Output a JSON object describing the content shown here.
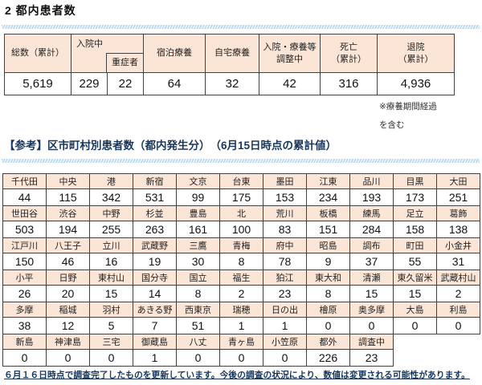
{
  "page_title": "2 都内患者数",
  "summary_table": {
    "headers": {
      "total": "総数（累計）",
      "hospitalized": "入院中",
      "severe": "重症者",
      "hotel_care": "宿泊療養",
      "home_care": "自宅療養",
      "adjusting": "入院・療養等\n調整中",
      "deaths": "死亡\n（累計）",
      "discharged": "退院\n（累計）"
    },
    "values": {
      "total": "5,619",
      "hospitalized": "229",
      "severe": "22",
      "hotel_care": "64",
      "home_care": "32",
      "adjusting": "42",
      "deaths": "316",
      "discharged": "4,936"
    },
    "note": "※療養期間経過\nを含む"
  },
  "section_title": "【参考】区市町村別患者数（都内発生分）　（6月15日時点の累計値）",
  "ward_table": {
    "columns_per_row": 11,
    "groups": [
      {
        "names": [
          "千代田",
          "中央",
          "港",
          "新宿",
          "文京",
          "台東",
          "墨田",
          "江東",
          "品川",
          "目黒",
          "大田"
        ],
        "values": [
          "44",
          "115",
          "342",
          "531",
          "99",
          "175",
          "153",
          "234",
          "193",
          "173",
          "251"
        ]
      },
      {
        "names": [
          "世田谷",
          "渋谷",
          "中野",
          "杉並",
          "豊島",
          "北",
          "荒川",
          "板橋",
          "練馬",
          "足立",
          "葛飾"
        ],
        "values": [
          "503",
          "194",
          "255",
          "263",
          "161",
          "100",
          "83",
          "151",
          "284",
          "158",
          "138"
        ]
      },
      {
        "names": [
          "江戸川",
          "八王子",
          "立川",
          "武蔵野",
          "三鷹",
          "青梅",
          "府中",
          "昭島",
          "調布",
          "町田",
          "小金井"
        ],
        "values": [
          "150",
          "46",
          "16",
          "19",
          "30",
          "8",
          "78",
          "9",
          "37",
          "55",
          "31"
        ]
      },
      {
        "names": [
          "小平",
          "日野",
          "東村山",
          "国分寺",
          "国立",
          "福生",
          "狛江",
          "東大和",
          "清瀬",
          "東久留米",
          "武蔵村山"
        ],
        "values": [
          "26",
          "20",
          "15",
          "14",
          "8",
          "2",
          "23",
          "8",
          "15",
          "15",
          "2"
        ]
      },
      {
        "names": [
          "多摩",
          "稲城",
          "羽村",
          "あきる野",
          "西東京",
          "瑞穂",
          "日の出",
          "檜原",
          "奥多摩",
          "大島",
          "利島"
        ],
        "values": [
          "38",
          "12",
          "5",
          "7",
          "51",
          "1",
          "1",
          "0",
          "0",
          "0",
          "0"
        ]
      },
      {
        "names": [
          "新島",
          "神津島",
          "三宅",
          "御蔵島",
          "八丈",
          "青ヶ島",
          "小笠原",
          "都外",
          "調査中"
        ],
        "values": [
          "0",
          "0",
          "0",
          "1",
          "0",
          "0",
          "0",
          "226",
          "23"
        ]
      }
    ]
  },
  "footer_note": "６月１６日時点で調査完了したものを更新しています。今後の調査の状況により、数値は変更される可能性があります。",
  "colors": {
    "header_fill": "#fbe5d6",
    "table_border": "#404040",
    "section_text": "#17365d",
    "divider_blue": "#a8cde9"
  }
}
